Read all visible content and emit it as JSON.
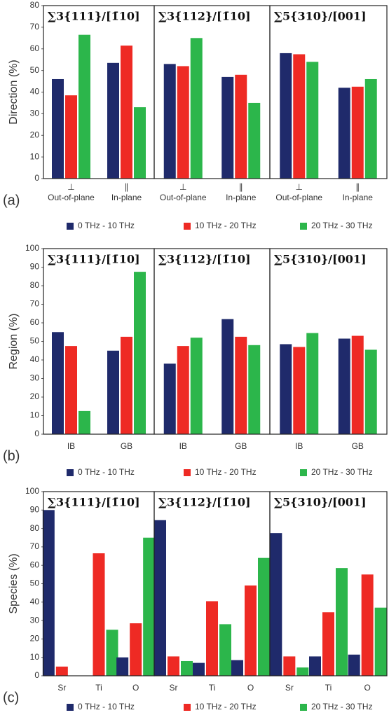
{
  "chart_data": [
    {
      "type": "bar",
      "label": "(a)",
      "ylabel": "Direction (%)",
      "ylim": [
        0,
        80
      ],
      "yticks": [
        0,
        10,
        20,
        30,
        40,
        50,
        60,
        70,
        80
      ],
      "series": [
        {
          "name": "0 THz - 10 THz",
          "color": "#1f2a6b"
        },
        {
          "name": "10 THz - 20 THz",
          "color": "#ee2a24"
        },
        {
          "name": "20 THz - 30 THz",
          "color": "#2cb64b"
        }
      ],
      "category_symbols": [
        "⊥",
        "∥"
      ],
      "panels": [
        {
          "title": "∑3{111}/[1̄10]",
          "categories": [
            "Out-of-plane",
            "In-plane"
          ],
          "values": [
            [
              46,
              53.5
            ],
            [
              38.5,
              61.5
            ],
            [
              66.5,
              33
            ]
          ]
        },
        {
          "title": "∑3{112}/[1̄10]",
          "categories": [
            "Out-of-plane",
            "In-plane"
          ],
          "values": [
            [
              53,
              47
            ],
            [
              52,
              48
            ],
            [
              65,
              35
            ]
          ]
        },
        {
          "title": "∑5{310}/[001]",
          "categories": [
            "Out-of-plane",
            "In-plane"
          ],
          "values": [
            [
              58,
              42
            ],
            [
              57.5,
              42.5
            ],
            [
              54,
              46
            ]
          ]
        }
      ]
    },
    {
      "type": "bar",
      "label": "(b)",
      "ylabel": "Region   (%)",
      "ylim": [
        0,
        100
      ],
      "yticks": [
        0,
        10,
        20,
        30,
        40,
        50,
        60,
        70,
        80,
        90,
        100
      ],
      "series": [
        {
          "name": "0 THz - 10 THz",
          "color": "#1f2a6b"
        },
        {
          "name": "10 THz - 20 THz",
          "color": "#ee2a24"
        },
        {
          "name": "20 THz - 30 THz",
          "color": "#2cb64b"
        }
      ],
      "panels": [
        {
          "title": "∑3{111}/[1̄10]",
          "categories": [
            "IB",
            "GB"
          ],
          "values": [
            [
              55,
              45
            ],
            [
              47.5,
              52.5
            ],
            [
              12.5,
              87.5
            ]
          ]
        },
        {
          "title": "∑3{112}/[1̄10]",
          "categories": [
            "IB",
            "GB"
          ],
          "values": [
            [
              38,
              62
            ],
            [
              47.5,
              52.5
            ],
            [
              52,
              48
            ]
          ]
        },
        {
          "title": "∑5{310}/[001]",
          "categories": [
            "IB",
            "GB"
          ],
          "values": [
            [
              48.5,
              51.5
            ],
            [
              47,
              53
            ],
            [
              54.5,
              45.5
            ]
          ]
        }
      ]
    },
    {
      "type": "bar",
      "label": "(c)",
      "ylabel": "Species   (%)",
      "ylim": [
        0,
        100
      ],
      "yticks": [
        0,
        10,
        20,
        30,
        40,
        50,
        60,
        70,
        80,
        90,
        100
      ],
      "series": [
        {
          "name": "0 THz - 10 THz",
          "color": "#1f2a6b"
        },
        {
          "name": "10 THz - 20 THz",
          "color": "#ee2a24"
        },
        {
          "name": "20 THz - 30 THz",
          "color": "#2cb64b"
        }
      ],
      "panels": [
        {
          "title": "∑3{111}/[1̄10]",
          "categories": [
            "Sr",
            "Ti",
            "O"
          ],
          "values": [
            [
              90,
              0,
              10
            ],
            [
              5,
              66.5,
              28.5
            ],
            [
              0,
              25,
              75
            ]
          ]
        },
        {
          "title": "∑3{112}/[1̄10]",
          "categories": [
            "Sr",
            "Ti",
            "O"
          ],
          "values": [
            [
              84.5,
              7,
              8.5
            ],
            [
              10.5,
              40.5,
              49
            ],
            [
              8,
              28,
              64
            ]
          ]
        },
        {
          "title": "∑5{310}/[001]",
          "categories": [
            "Sr",
            "Ti",
            "O"
          ],
          "values": [
            [
              77.5,
              10.5,
              11.5
            ],
            [
              10.5,
              34.5,
              55
            ],
            [
              4.5,
              58.5,
              37
            ]
          ]
        }
      ]
    }
  ]
}
